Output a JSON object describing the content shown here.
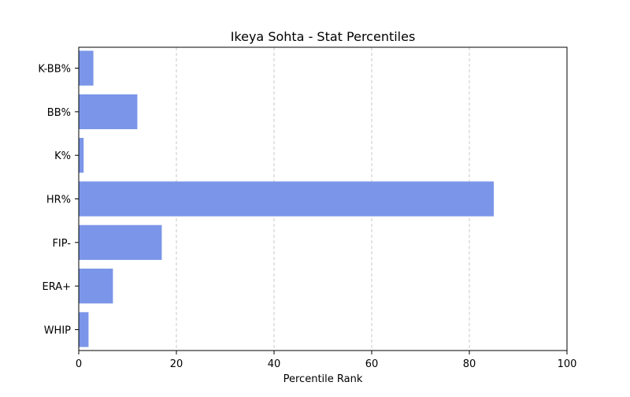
{
  "chart_data": {
    "type": "bar",
    "orientation": "horizontal",
    "title": "Ikeya Sohta - Stat Percentiles",
    "xlabel": "Percentile Rank",
    "ylabel": "",
    "xlim": [
      0,
      100
    ],
    "xticks": [
      0,
      20,
      40,
      60,
      80,
      100
    ],
    "grid": "x-dashed",
    "bar_color": "#7b96e8",
    "categories": [
      "K-BB%",
      "BB%",
      "K%",
      "HR%",
      "FIP-",
      "ERA+",
      "WHIP"
    ],
    "values": [
      3,
      12,
      1,
      85,
      17,
      7,
      2
    ]
  }
}
